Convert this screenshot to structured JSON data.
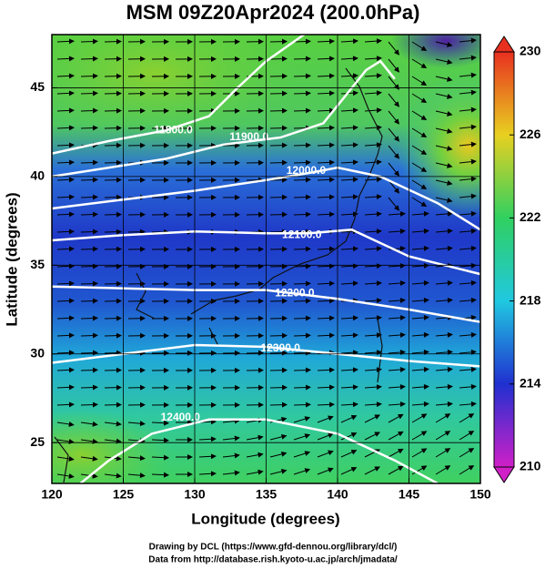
{
  "chart_data": {
    "type": "contour-map",
    "title": "MSM 09Z20Apr2024 (200.0hPa)",
    "x_label": "Longitude (degrees)",
    "y_label": "Latitude  (degrees)",
    "xlim": [
      120,
      150
    ],
    "xticks": [
      120,
      125,
      130,
      135,
      140,
      145,
      150
    ],
    "ylim": [
      22.7,
      48
    ],
    "yticks": [
      25,
      30,
      35,
      40,
      45
    ],
    "grid": true,
    "contours": [
      {
        "value": 11800,
        "label": "11800.0"
      },
      {
        "value": 11900,
        "label": "11900.0"
      },
      {
        "value": 12000,
        "label": "12000.0"
      },
      {
        "value": 12100,
        "label": "12100.0"
      },
      {
        "value": 12200,
        "label": "12200.0"
      },
      {
        "value": 12300,
        "label": "12300.0"
      },
      {
        "value": 12400,
        "label": "12400.0"
      }
    ],
    "contour_color": "#ffffff",
    "colorbar": {
      "lim": [
        210,
        230
      ],
      "ticks": [
        210,
        214,
        218,
        222,
        226,
        230
      ],
      "colors": [
        "#d020c8",
        "#2030d0",
        "#20c8e0",
        "#30d060",
        "#e8d020",
        "#e83020"
      ]
    },
    "footer": [
      "Drawing by DCL (https://www.gfd-dennou.org/library/dcl/)",
      "Data from http://database.rish.kyoto-u.ac.jp/arch/jmadata/"
    ]
  }
}
